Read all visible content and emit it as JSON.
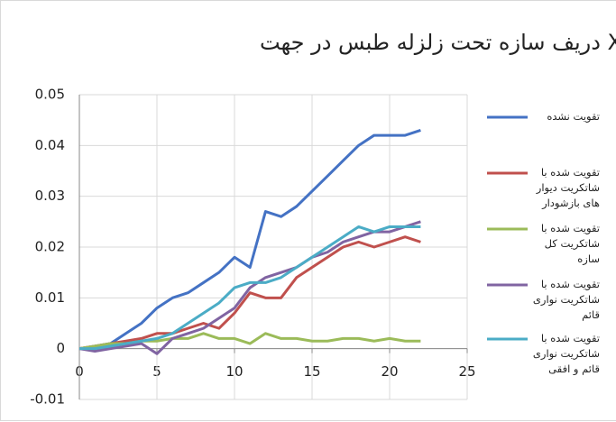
{
  "chart_data": {
    "type": "line",
    "title": "دريف سازه تحت زلزله طبس  در جهت X",
    "x": [
      0,
      1,
      2,
      3,
      4,
      5,
      6,
      7,
      8,
      9,
      10,
      11,
      12,
      13,
      14,
      15,
      16,
      17,
      18,
      19,
      20,
      21,
      22
    ],
    "series": [
      {
        "name": "تقویت نشده",
        "color": "#4472c4",
        "values": [
          0,
          0.0005,
          0.001,
          0.003,
          0.005,
          0.008,
          0.01,
          0.011,
          0.013,
          0.015,
          0.018,
          0.016,
          0.027,
          0.026,
          0.028,
          0.031,
          0.034,
          0.037,
          0.04,
          0.042,
          0.042,
          0.042,
          0.043
        ]
      },
      {
        "name": "تقویت شده با شاتکریت دیوار های بازشودار",
        "color": "#c0504d",
        "values": [
          0,
          0.0005,
          0.001,
          0.0015,
          0.002,
          0.003,
          0.003,
          0.004,
          0.005,
          0.004,
          0.007,
          0.011,
          0.01,
          0.01,
          0.014,
          0.016,
          0.018,
          0.02,
          0.021,
          0.02,
          0.021,
          0.022,
          0.021
        ]
      },
      {
        "name": "تقویت شده با شاتکریت کل سازه",
        "color": "#9bbb59",
        "values": [
          0,
          0.0005,
          0.001,
          0.001,
          0.0015,
          0.0015,
          0.002,
          0.002,
          0.003,
          0.002,
          0.002,
          0.001,
          0.003,
          0.002,
          0.002,
          0.0015,
          0.0015,
          0.002,
          0.002,
          0.0015,
          0.002,
          0.0015,
          0.0015
        ]
      },
      {
        "name": "تقویت شده با شاتکریت نواری قائم",
        "color": "#8064a2",
        "values": [
          0,
          -0.0005,
          0,
          0.0005,
          0.001,
          -0.001,
          0.002,
          0.003,
          0.004,
          0.006,
          0.008,
          0.012,
          0.014,
          0.015,
          0.016,
          0.018,
          0.019,
          0.021,
          0.022,
          0.023,
          0.023,
          0.024,
          0.025
        ]
      },
      {
        "name": "تقویت شده با شاتکریت نواری قائم و افقی",
        "color": "#4bacc6",
        "values": [
          0,
          0,
          0.0005,
          0.001,
          0.0015,
          0.002,
          0.003,
          0.005,
          0.007,
          0.009,
          0.012,
          0.013,
          0.013,
          0.014,
          0.016,
          0.018,
          0.02,
          0.022,
          0.024,
          0.023,
          0.024,
          0.024,
          0.024
        ]
      }
    ],
    "xlim": [
      0,
      25
    ],
    "xticks": [
      0,
      5,
      10,
      15,
      20,
      25
    ],
    "ylim": [
      -0.01,
      0.05
    ],
    "yticks": [
      -0.01,
      0,
      0.01,
      0.02,
      0.03,
      0.04,
      0.05
    ],
    "grid": true,
    "legend": "right"
  }
}
